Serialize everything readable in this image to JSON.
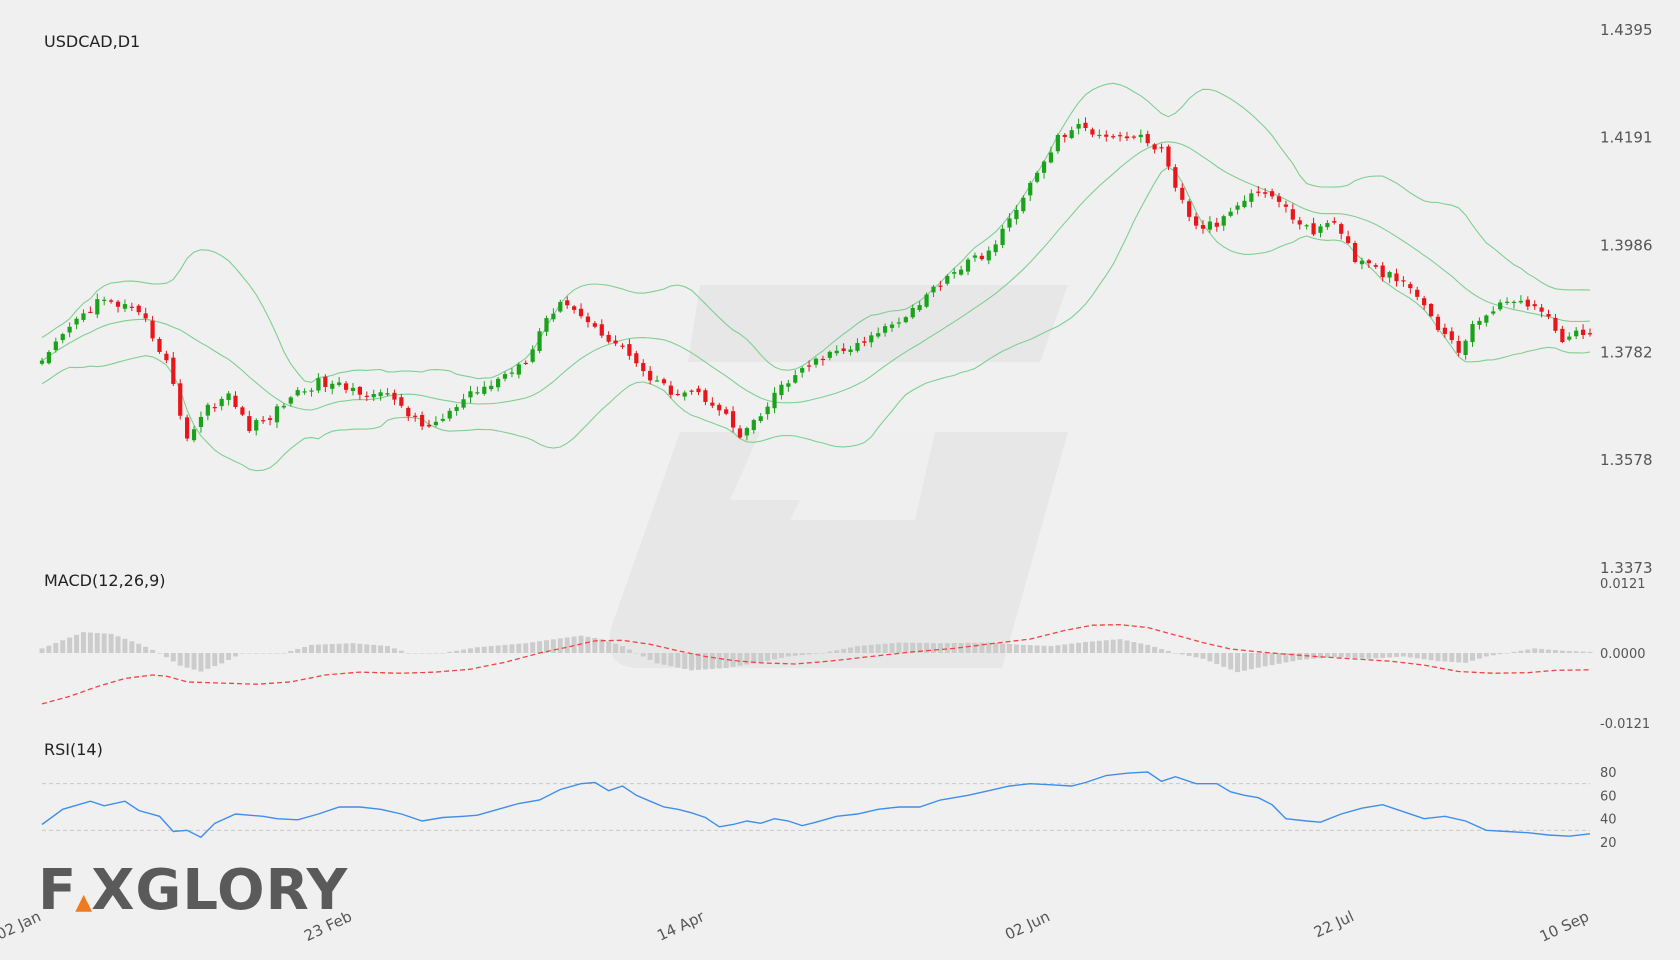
{
  "colors": {
    "background": "#f0f0f0",
    "bull": "#1aa31a",
    "bear": "#e8151b",
    "bands": "#7fcf92",
    "macd_signal": "#ee4444",
    "histogram": "#cccccc",
    "rsi": "#3f8ee8",
    "guide": "#c8c8c8",
    "axis_text": "#555555",
    "watermark": "#e2e2e2",
    "logo_accent": "#f07a1f"
  },
  "logo": {
    "text_before": "F",
    "accent_char": "▲",
    "text_after": "XGLORY"
  },
  "x_labels": [
    "02 Jan",
    "23 Feb",
    "14 Apr",
    "02 Jun",
    "22 Jul",
    "10 Sep"
  ],
  "chart_data": [
    {
      "panel": "price",
      "type": "candlestick",
      "title": "USDCAD,D1",
      "ylim": [
        1.3373,
        1.4395
      ],
      "yticks": [
        "1.4395",
        "1.4191",
        "1.3986",
        "1.3782",
        "1.3578",
        "1.3373"
      ],
      "overlay": "Bollinger bands (upper, middle, lower)",
      "close_path": [
        [
          0,
          1.376
        ],
        [
          4,
          1.383
        ],
        [
          8,
          1.388
        ],
        [
          12,
          1.387
        ],
        [
          15,
          1.384
        ],
        [
          18,
          1.3765
        ],
        [
          21,
          1.362
        ],
        [
          24,
          1.368
        ],
        [
          27,
          1.37
        ],
        [
          30,
          1.364
        ],
        [
          33,
          1.366
        ],
        [
          36,
          1.37
        ],
        [
          40,
          1.3725
        ],
        [
          44,
          1.3715
        ],
        [
          48,
          1.3705
        ],
        [
          51,
          1.3695
        ],
        [
          55,
          1.364
        ],
        [
          58,
          1.3655
        ],
        [
          62,
          1.37
        ],
        [
          66,
          1.373
        ],
        [
          70,
          1.377
        ],
        [
          73,
          1.385
        ],
        [
          76,
          1.388
        ],
        [
          79,
          1.384
        ],
        [
          82,
          1.381
        ],
        [
          85,
          1.378
        ],
        [
          88,
          1.373
        ],
        [
          91,
          1.371
        ],
        [
          94,
          1.371
        ],
        [
          98,
          1.368
        ],
        [
          101,
          1.362
        ],
        [
          104,
          1.366
        ],
        [
          107,
          1.372
        ],
        [
          110,
          1.3745
        ],
        [
          113,
          1.3775
        ],
        [
          116,
          1.3785
        ],
        [
          119,
          1.38
        ],
        [
          122,
          1.383
        ],
        [
          125,
          1.3855
        ],
        [
          128,
          1.389
        ],
        [
          131,
          1.393
        ],
        [
          135,
          1.396
        ],
        [
          138,
          1.3985
        ],
        [
          141,
          1.406
        ],
        [
          144,
          1.412
        ],
        [
          147,
          1.419
        ],
        [
          150,
          1.421
        ],
        [
          153,
          1.42
        ],
        [
          156,
          1.4195
        ],
        [
          159,
          1.419
        ],
        [
          162,
          1.4165
        ],
        [
          164,
          1.409
        ],
        [
          167,
          1.402
        ],
        [
          170,
          1.4025
        ],
        [
          173,
          1.407
        ],
        [
          176,
          1.409
        ],
        [
          178,
          1.408
        ],
        [
          181,
          1.404
        ],
        [
          184,
          1.401
        ],
        [
          187,
          1.4035
        ],
        [
          190,
          1.396
        ],
        [
          193,
          1.394
        ],
        [
          196,
          1.392
        ],
        [
          199,
          1.389
        ],
        [
          202,
          1.383
        ],
        [
          205,
          1.3785
        ],
        [
          208,
          1.385
        ],
        [
          211,
          1.387
        ],
        [
          214,
          1.3885
        ],
        [
          217,
          1.386
        ],
        [
          220,
          1.381
        ],
        [
          224,
          1.382
        ]
      ]
    },
    {
      "panel": "macd",
      "type": "line+histogram",
      "title": "MACD(12,26,9)",
      "ylim": [
        -0.0121,
        0.0121
      ],
      "yticks": [
        "0.0121",
        "0.0000",
        "-0.0121"
      ],
      "signal": [
        [
          0,
          -0.0088
        ],
        [
          4,
          -0.0075
        ],
        [
          8,
          -0.0058
        ],
        [
          12,
          -0.0044
        ],
        [
          16,
          -0.0038
        ],
        [
          18,
          -0.004
        ],
        [
          21,
          -0.005
        ],
        [
          26,
          -0.0052
        ],
        [
          31,
          -0.0054
        ],
        [
          36,
          -0.005
        ],
        [
          41,
          -0.0038
        ],
        [
          46,
          -0.0033
        ],
        [
          52,
          -0.0035
        ],
        [
          57,
          -0.0033
        ],
        [
          62,
          -0.0028
        ],
        [
          67,
          -0.0016
        ],
        [
          72,
          0.0
        ],
        [
          76,
          0.001
        ],
        [
          80,
          0.0021
        ],
        [
          84,
          0.0022
        ],
        [
          88,
          0.0015
        ],
        [
          92,
          0.0004
        ],
        [
          96,
          -0.0006
        ],
        [
          100,
          -0.0013
        ],
        [
          104,
          -0.0017
        ],
        [
          109,
          -0.0019
        ],
        [
          114,
          -0.0014
        ],
        [
          120,
          -0.0006
        ],
        [
          126,
          0.0002
        ],
        [
          132,
          0.0008
        ],
        [
          138,
          0.0017
        ],
        [
          143,
          0.0024
        ],
        [
          148,
          0.0039
        ],
        [
          152,
          0.0048
        ],
        [
          156,
          0.0049
        ],
        [
          160,
          0.0044
        ],
        [
          164,
          0.0031
        ],
        [
          168,
          0.0018
        ],
        [
          172,
          0.0007
        ],
        [
          176,
          0.0002
        ],
        [
          182,
          -0.0004
        ],
        [
          188,
          -0.0009
        ],
        [
          195,
          -0.0014
        ],
        [
          200,
          -0.0021
        ],
        [
          205,
          -0.0032
        ],
        [
          210,
          -0.0035
        ],
        [
          215,
          -0.0034
        ],
        [
          219,
          -0.003
        ],
        [
          224,
          -0.0029
        ]
      ],
      "histogram_shape": [
        [
          0,
          0.0008
        ],
        [
          6,
          0.0036
        ],
        [
          10,
          0.0033
        ],
        [
          14,
          0.0016
        ],
        [
          17,
          0.0
        ],
        [
          20,
          -0.0022
        ],
        [
          23,
          -0.0032
        ],
        [
          26,
          -0.0018
        ],
        [
          29,
          0.0
        ],
        [
          35,
          0.0
        ],
        [
          39,
          0.0014
        ],
        [
          45,
          0.0017
        ],
        [
          50,
          0.0012
        ],
        [
          53,
          0.0
        ],
        [
          58,
          0.0
        ],
        [
          63,
          0.001
        ],
        [
          70,
          0.0017
        ],
        [
          73,
          0.0022
        ],
        [
          78,
          0.003
        ],
        [
          81,
          0.0024
        ],
        [
          84,
          0.0012
        ],
        [
          86,
          0.0
        ],
        [
          89,
          -0.0018
        ],
        [
          94,
          -0.003
        ],
        [
          99,
          -0.0026
        ],
        [
          104,
          -0.0016
        ],
        [
          108,
          -0.0006
        ],
        [
          113,
          0.0
        ],
        [
          118,
          0.0012
        ],
        [
          124,
          0.0018
        ],
        [
          130,
          0.0017
        ],
        [
          137,
          0.0018
        ],
        [
          142,
          0.0014
        ],
        [
          146,
          0.0012
        ],
        [
          151,
          0.0019
        ],
        [
          156,
          0.0024
        ],
        [
          160,
          0.0014
        ],
        [
          164,
          0.0
        ],
        [
          168,
          -0.001
        ],
        [
          173,
          -0.0033
        ],
        [
          177,
          -0.0023
        ],
        [
          182,
          -0.0012
        ],
        [
          187,
          -0.0007
        ],
        [
          192,
          -0.001
        ],
        [
          197,
          -0.0006
        ],
        [
          202,
          -0.0014
        ],
        [
          206,
          -0.0017
        ],
        [
          209,
          -0.0006
        ],
        [
          212,
          0.0
        ],
        [
          216,
          0.0008
        ],
        [
          220,
          0.0004
        ],
        [
          224,
          0.0002
        ]
      ]
    },
    {
      "panel": "rsi",
      "type": "line",
      "title": "RSI(14)",
      "ylim": [
        20,
        80
      ],
      "yticks": [
        "80",
        "60",
        "40",
        "20"
      ],
      "levels": [
        70,
        30
      ],
      "values": [
        [
          0,
          35
        ],
        [
          3,
          48
        ],
        [
          7,
          55
        ],
        [
          9,
          51
        ],
        [
          12,
          55
        ],
        [
          14,
          47
        ],
        [
          17,
          42
        ],
        [
          19,
          29
        ],
        [
          21,
          30
        ],
        [
          23,
          24
        ],
        [
          25,
          36
        ],
        [
          28,
          44
        ],
        [
          30,
          43
        ],
        [
          32,
          42
        ],
        [
          34,
          40
        ],
        [
          37,
          39
        ],
        [
          40,
          44
        ],
        [
          43,
          50
        ],
        [
          46,
          50
        ],
        [
          49,
          48
        ],
        [
          52,
          44
        ],
        [
          55,
          38
        ],
        [
          58,
          41
        ],
        [
          61,
          42
        ],
        [
          63,
          43
        ],
        [
          66,
          48
        ],
        [
          69,
          53
        ],
        [
          72,
          56
        ],
        [
          75,
          65
        ],
        [
          78,
          70
        ],
        [
          80,
          71
        ],
        [
          82,
          64
        ],
        [
          84,
          68
        ],
        [
          86,
          60
        ],
        [
          88,
          55
        ],
        [
          90,
          50
        ],
        [
          92,
          48
        ],
        [
          94,
          45
        ],
        [
          96,
          41
        ],
        [
          98,
          33
        ],
        [
          100,
          35
        ],
        [
          102,
          38
        ],
        [
          104,
          36
        ],
        [
          106,
          40
        ],
        [
          108,
          38
        ],
        [
          110,
          34
        ],
        [
          112,
          37
        ],
        [
          115,
          42
        ],
        [
          118,
          44
        ],
        [
          121,
          48
        ],
        [
          124,
          50
        ],
        [
          127,
          50
        ],
        [
          130,
          56
        ],
        [
          132,
          58
        ],
        [
          134,
          60
        ],
        [
          137,
          64
        ],
        [
          140,
          68
        ],
        [
          143,
          70
        ],
        [
          146,
          69
        ],
        [
          149,
          68
        ],
        [
          151,
          71
        ],
        [
          154,
          77
        ],
        [
          157,
          79
        ],
        [
          160,
          80
        ],
        [
          162,
          72
        ],
        [
          164,
          76
        ],
        [
          167,
          70
        ],
        [
          170,
          70
        ],
        [
          172,
          63
        ],
        [
          174,
          60
        ],
        [
          176,
          58
        ],
        [
          178,
          52
        ],
        [
          180,
          40
        ],
        [
          183,
          38
        ],
        [
          185,
          37
        ],
        [
          188,
          44
        ],
        [
          191,
          49
        ],
        [
          194,
          52
        ],
        [
          197,
          46
        ],
        [
          200,
          40
        ],
        [
          203,
          42
        ],
        [
          206,
          38
        ],
        [
          209,
          30
        ],
        [
          212,
          29
        ],
        [
          215,
          28
        ],
        [
          218,
          26
        ],
        [
          221,
          25
        ],
        [
          224,
          27
        ]
      ]
    }
  ]
}
